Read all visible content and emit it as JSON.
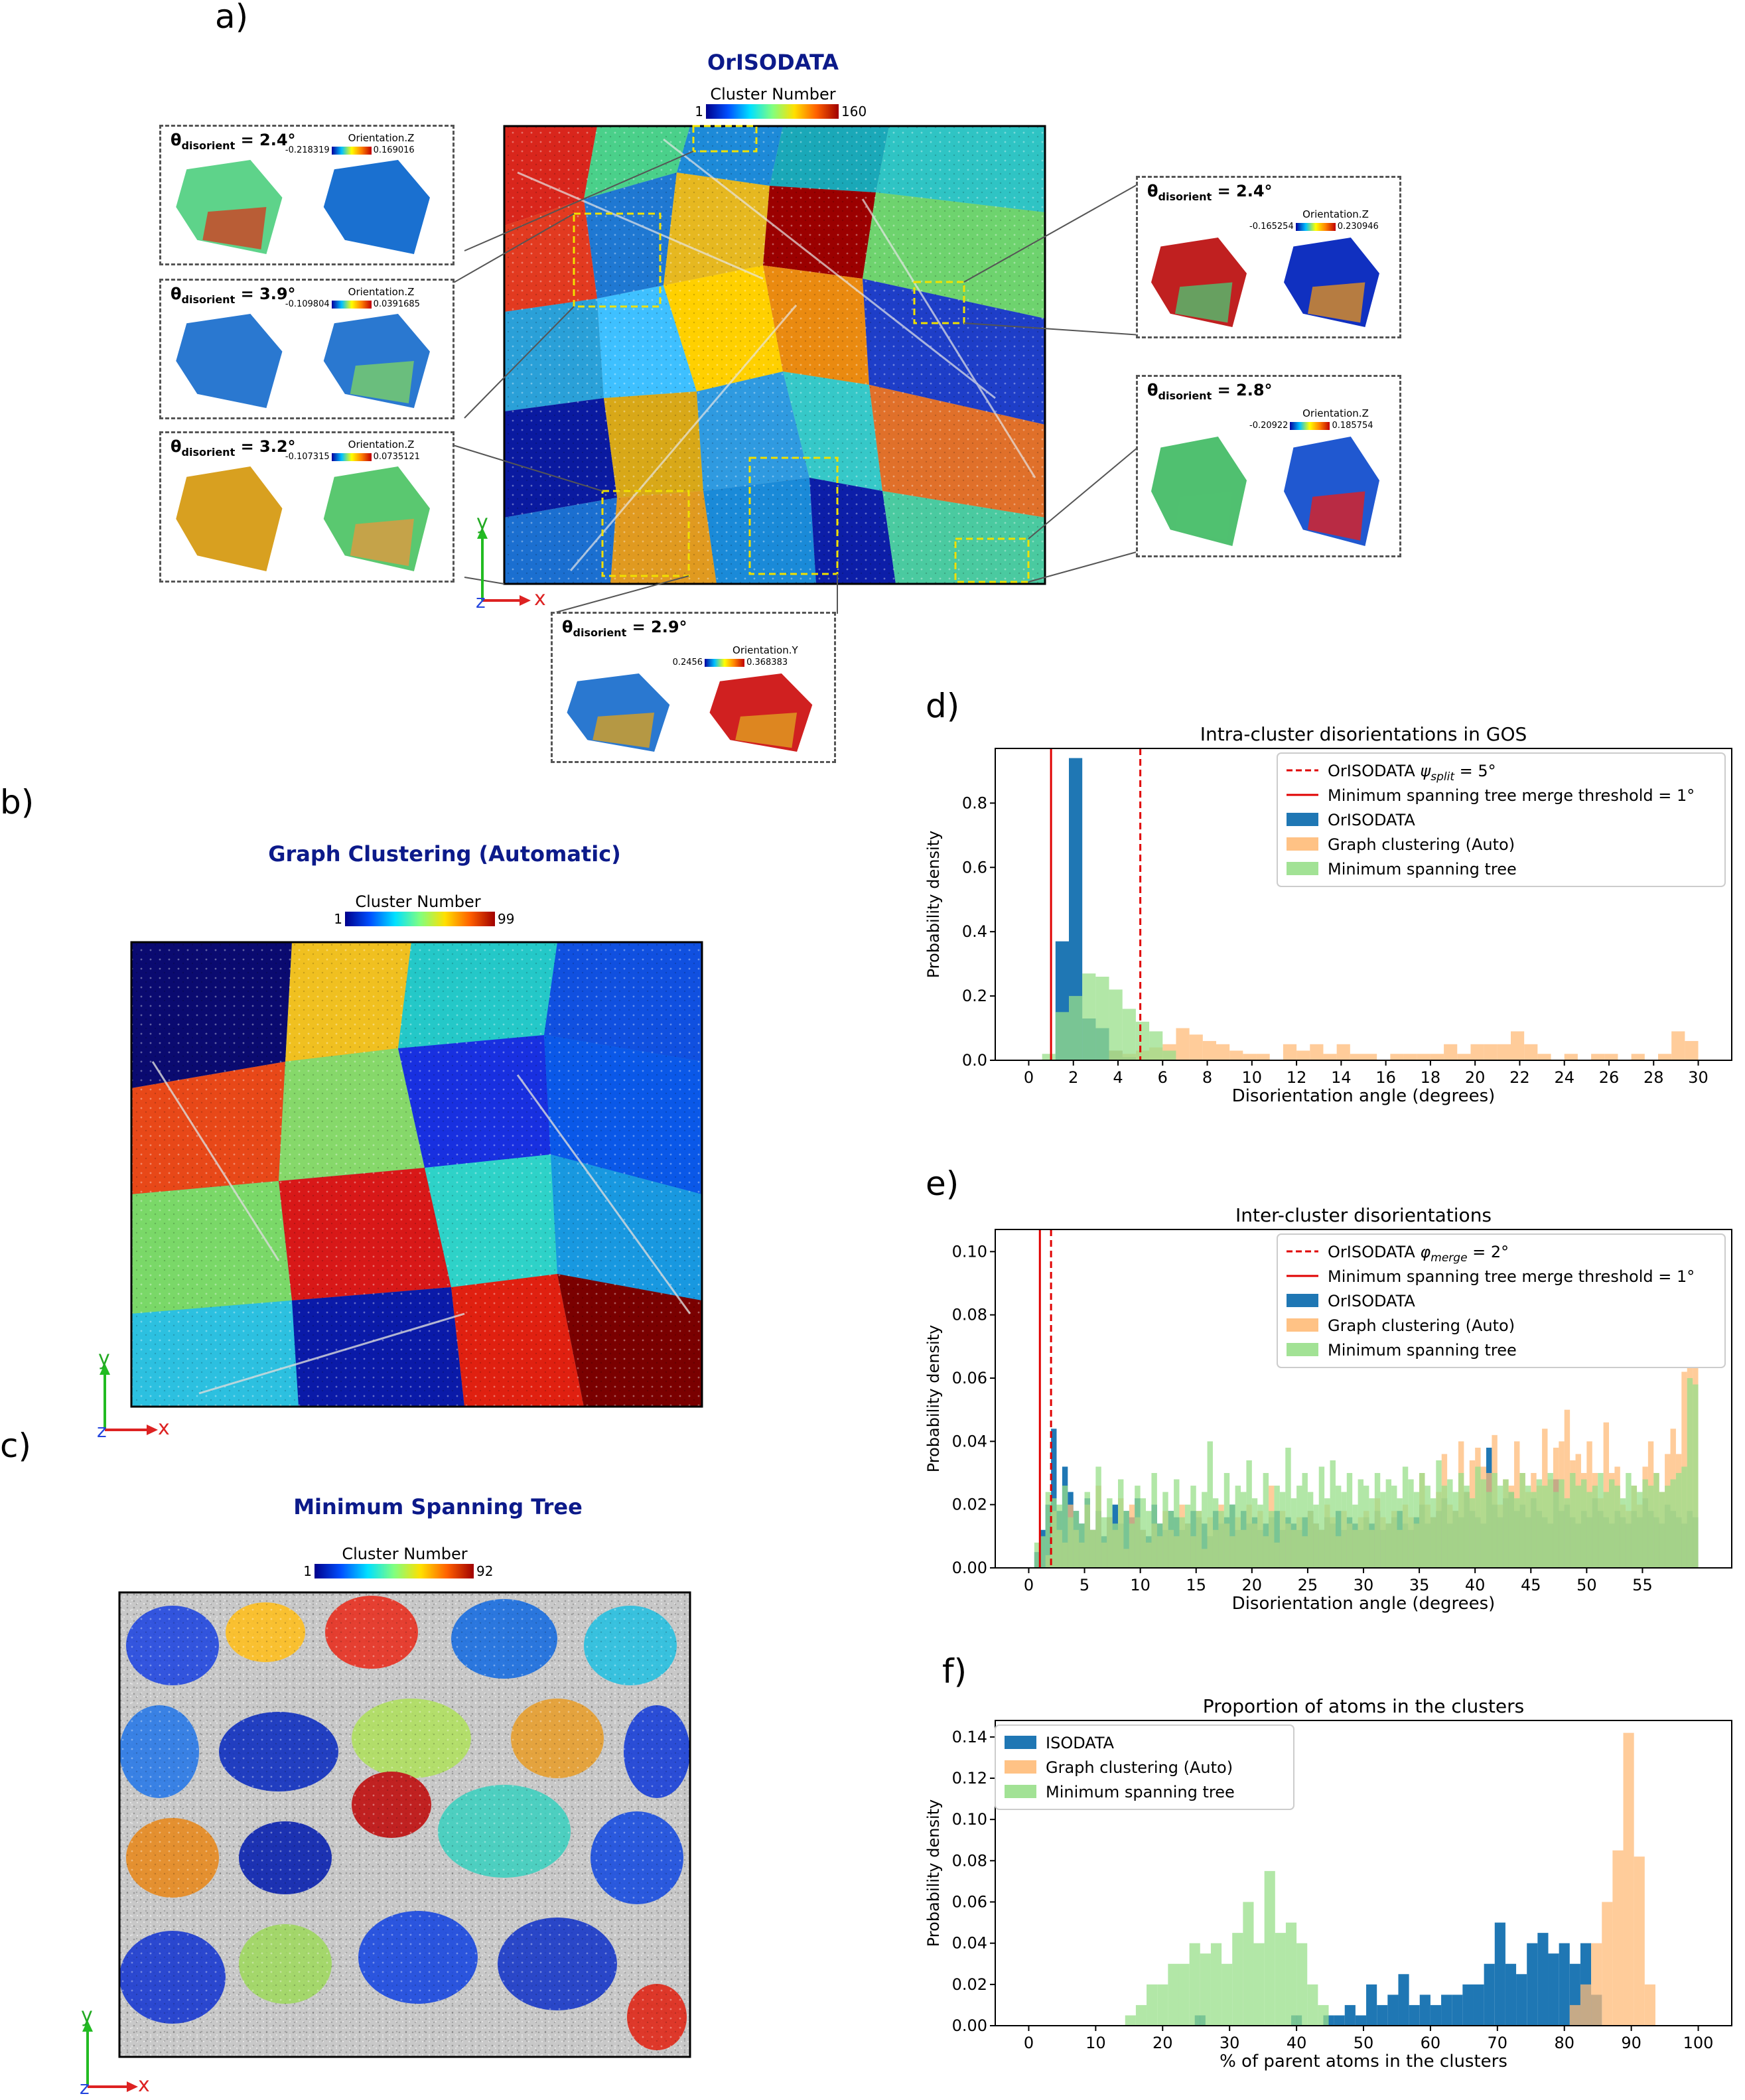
{
  "colors": {
    "title_blue": "#0c1a8a",
    "orisodata": "#1f77b4",
    "graph_auto": "#ffbb78",
    "mst": "#98df8a",
    "ref_line": "#e00000"
  },
  "panels": {
    "a": {
      "letter": "a)",
      "title": "OrISODATA",
      "colorbar": {
        "label": "Cluster Number",
        "min": "1",
        "max": "160"
      },
      "insets": [
        {
          "theta": "θdisorient = 2.4°",
          "theta_main": "θ",
          "theta_sub": "disorient",
          "theta_val": " = 2.4°",
          "cb_label": "Orientation.Z",
          "cb_min": "-0.218319",
          "cb_max": "0.169016"
        },
        {
          "theta": "θdisorient = 3.9°",
          "theta_main": "θ",
          "theta_sub": "disorient",
          "theta_val": " = 3.9°",
          "cb_label": "Orientation.Z",
          "cb_min": "-0.109804",
          "cb_max": "0.0391685"
        },
        {
          "theta": "θdisorient = 3.2°",
          "theta_main": "θ",
          "theta_sub": "disorient",
          "theta_val": " = 3.2°",
          "cb_label": "Orientation.Z",
          "cb_min": "-0.107315",
          "cb_max": "0.0735121"
        },
        {
          "theta": "θdisorient = 2.4°",
          "theta_main": "θ",
          "theta_sub": "disorient",
          "theta_val": " = 2.4°",
          "cb_label": "Orientation.Z",
          "cb_min": "-0.165254",
          "cb_max": "0.230946"
        },
        {
          "theta": "θdisorient = 2.8°",
          "theta_main": "θ",
          "theta_sub": "disorient",
          "theta_val": " = 2.8°",
          "cb_label": "Orientation.Z",
          "cb_min": "-0.20922",
          "cb_max": "0.185754"
        },
        {
          "theta": "θdisorient = 2.9°",
          "theta_main": "θ",
          "theta_sub": "disorient",
          "theta_val": " = 2.9°",
          "cb_label": "Orientation.Y",
          "cb_min": "0.2456",
          "cb_max": "0.368383"
        }
      ],
      "axes": {
        "y": "y",
        "x": "x",
        "z": "z"
      }
    },
    "b": {
      "letter": "b)",
      "title": "Graph Clustering (Automatic)",
      "colorbar": {
        "label": "Cluster Number",
        "min": "1",
        "max": "99"
      },
      "axes": {
        "y": "y",
        "x": "x",
        "z": "z"
      }
    },
    "c": {
      "letter": "c)",
      "title": "Minimum Spanning Tree",
      "colorbar": {
        "label": "Cluster Number",
        "min": "1",
        "max": "92"
      },
      "axes": {
        "y": "y",
        "x": "x",
        "z": "z"
      }
    },
    "d": {
      "letter": "d)"
    },
    "e": {
      "letter": "e)"
    },
    "f": {
      "letter": "f)"
    }
  },
  "chart_data": [
    {
      "id": "d",
      "type": "bar",
      "title": "Intra-cluster disorientations in GOS",
      "xlabel": "Disorientation angle (degrees)",
      "ylabel": "Probability density",
      "xlim": [
        -1.5,
        31.5
      ],
      "ylim": [
        0,
        0.97
      ],
      "xticks": [
        0,
        2,
        4,
        6,
        8,
        10,
        12,
        14,
        16,
        18,
        20,
        22,
        24,
        26,
        28,
        30
      ],
      "yticks": [
        0.0,
        0.2,
        0.4,
        0.6,
        0.8
      ],
      "ytick_labels": [
        "0.0",
        "0.2",
        "0.4",
        "0.6",
        "0.8"
      ],
      "bin_width": 0.6,
      "vlines": [
        {
          "x": 5,
          "style": "dashed",
          "label": "OrISODATA ψsplit = 5°",
          "label_main": "OrISODATA ",
          "label_ital": "ψ",
          "label_sub": "split",
          "label_end": " = 5°"
        },
        {
          "x": 1,
          "style": "solid",
          "label": "Minimum spanning tree merge threshold = 1°"
        }
      ],
      "series": [
        {
          "name": "OrISODATA",
          "x": [
            1.2,
            1.8,
            2.4,
            3.0,
            3.6,
            4.2
          ],
          "values": [
            0.37,
            0.94,
            0.13,
            0.1,
            0.03,
            0.01
          ]
        },
        {
          "name": "Graph clustering (Auto)",
          "x": [
            3.6,
            4.2,
            4.8,
            5.4,
            6.0,
            6.6,
            7.2,
            7.8,
            8.4,
            9.0,
            9.6,
            10.2,
            11.4,
            12.0,
            12.6,
            13.2,
            13.8,
            14.4,
            15.0,
            16.2,
            16.8,
            17.4,
            18.0,
            18.6,
            19.2,
            19.8,
            20.4,
            21.0,
            21.6,
            22.2,
            22.8,
            24.0,
            25.2,
            25.8,
            27.0,
            28.2,
            28.8,
            29.4
          ],
          "values": [
            0.03,
            0.02,
            0.03,
            0.04,
            0.05,
            0.1,
            0.08,
            0.06,
            0.05,
            0.03,
            0.02,
            0.02,
            0.05,
            0.03,
            0.05,
            0.02,
            0.05,
            0.02,
            0.02,
            0.02,
            0.02,
            0.02,
            0.02,
            0.05,
            0.02,
            0.05,
            0.05,
            0.05,
            0.09,
            0.05,
            0.02,
            0.02,
            0.02,
            0.02,
            0.02,
            0.02,
            0.09,
            0.06
          ]
        },
        {
          "name": "Minimum spanning tree",
          "x": [
            0.6,
            1.2,
            1.8,
            2.4,
            3.0,
            3.6,
            4.2,
            4.8,
            5.4,
            6.0
          ],
          "values": [
            0.02,
            0.15,
            0.2,
            0.27,
            0.26,
            0.22,
            0.16,
            0.12,
            0.09,
            0.03
          ]
        }
      ]
    },
    {
      "id": "e",
      "type": "bar",
      "title": "Inter-cluster disorientations",
      "xlabel": "Disorientation angle (degrees)",
      "ylabel": "Probability density",
      "xlim": [
        -3,
        63
      ],
      "ylim": [
        0,
        0.107
      ],
      "xticks": [
        0,
        5,
        10,
        15,
        20,
        25,
        30,
        35,
        40,
        45,
        50,
        55
      ],
      "yticks": [
        0.0,
        0.02,
        0.04,
        0.06,
        0.08,
        0.1
      ],
      "ytick_labels": [
        "0.00",
        "0.02",
        "0.04",
        "0.06",
        "0.08",
        "0.10"
      ],
      "bin_width": 0.5,
      "vlines": [
        {
          "x": 2,
          "style": "dashed",
          "label": "OrISODATA φmerge = 2°",
          "label_main": "OrISODATA ",
          "label_ital": "φ",
          "label_sub": "merge",
          "label_end": " = 2°"
        },
        {
          "x": 1,
          "style": "solid",
          "label": "Minimum spanning tree merge threshold = 1°"
        }
      ],
      "series": [
        {
          "name": "OrISODATA",
          "x0": 0.0,
          "values": [
            0.0,
            0.005,
            0.012,
            0.02,
            0.044,
            0.018,
            0.032,
            0.024,
            0.018,
            0.014,
            0.022,
            0.012,
            0.018,
            0.01,
            0.016,
            0.02,
            0.014,
            0.018,
            0.016,
            0.022,
            0.012,
            0.01,
            0.02,
            0.014,
            0.012,
            0.018,
            0.016,
            0.012,
            0.014,
            0.018,
            0.016,
            0.014,
            0.01,
            0.018,
            0.014,
            0.016,
            0.02,
            0.012,
            0.018,
            0.014,
            0.016,
            0.012,
            0.014,
            0.016,
            0.018,
            0.012,
            0.016,
            0.014,
            0.012,
            0.016,
            0.018,
            0.014,
            0.012,
            0.016,
            0.014,
            0.018,
            0.012,
            0.016,
            0.014,
            0.012,
            0.016,
            0.014,
            0.018,
            0.012,
            0.014,
            0.016,
            0.018,
            0.014,
            0.012,
            0.016,
            0.02,
            0.014,
            0.016,
            0.018,
            0.022,
            0.014,
            0.018,
            0.016,
            0.024,
            0.018,
            0.016,
            0.014,
            0.038,
            0.02,
            0.016,
            0.022,
            0.024,
            0.018,
            0.02,
            0.016,
            0.022,
            0.018,
            0.016,
            0.014,
            0.028,
            0.018,
            0.02,
            0.016,
            0.014,
            0.018,
            0.016,
            0.022,
            0.018,
            0.016,
            0.014,
            0.018,
            0.016,
            0.014,
            0.018,
            0.016,
            0.022,
            0.018,
            0.016,
            0.014,
            0.02,
            0.018,
            0.016,
            0.014,
            0.018,
            0.016
          ]
        },
        {
          "name": "Graph clustering (Auto)",
          "x0": 0.0,
          "values": [
            0.0,
            0.0,
            0.0,
            0.004,
            0.018,
            0.012,
            0.008,
            0.02,
            0.012,
            0.008,
            0.02,
            0.012,
            0.026,
            0.008,
            0.016,
            0.012,
            0.022,
            0.006,
            0.02,
            0.016,
            0.012,
            0.008,
            0.014,
            0.01,
            0.018,
            0.012,
            0.01,
            0.02,
            0.014,
            0.01,
            0.018,
            0.006,
            0.016,
            0.012,
            0.02,
            0.014,
            0.01,
            0.016,
            0.012,
            0.02,
            0.014,
            0.018,
            0.01,
            0.026,
            0.008,
            0.018,
            0.014,
            0.012,
            0.016,
            0.01,
            0.018,
            0.014,
            0.012,
            0.02,
            0.016,
            0.01,
            0.018,
            0.014,
            0.012,
            0.016,
            0.018,
            0.012,
            0.022,
            0.016,
            0.014,
            0.018,
            0.012,
            0.02,
            0.016,
            0.014,
            0.03,
            0.02,
            0.016,
            0.024,
            0.036,
            0.02,
            0.018,
            0.04,
            0.024,
            0.034,
            0.038,
            0.032,
            0.03,
            0.042,
            0.02,
            0.028,
            0.026,
            0.04,
            0.03,
            0.024,
            0.03,
            0.026,
            0.044,
            0.028,
            0.038,
            0.04,
            0.05,
            0.034,
            0.036,
            0.03,
            0.04,
            0.03,
            0.022,
            0.046,
            0.03,
            0.032,
            0.02,
            0.018,
            0.026,
            0.02,
            0.032,
            0.04,
            0.03,
            0.024,
            0.036,
            0.044,
            0.036,
            0.062,
            0.104,
            0.068
          ]
        },
        {
          "name": "Minimum spanning tree",
          "x0": 0.0,
          "values": [
            0.0,
            0.008,
            0.01,
            0.024,
            0.022,
            0.02,
            0.026,
            0.016,
            0.018,
            0.014,
            0.024,
            0.012,
            0.032,
            0.016,
            0.022,
            0.014,
            0.028,
            0.018,
            0.014,
            0.026,
            0.022,
            0.018,
            0.03,
            0.014,
            0.024,
            0.018,
            0.028,
            0.016,
            0.02,
            0.026,
            0.018,
            0.024,
            0.04,
            0.022,
            0.018,
            0.03,
            0.02,
            0.026,
            0.024,
            0.034,
            0.022,
            0.02,
            0.03,
            0.018,
            0.026,
            0.024,
            0.038,
            0.022,
            0.026,
            0.03,
            0.024,
            0.02,
            0.032,
            0.022,
            0.034,
            0.026,
            0.024,
            0.03,
            0.02,
            0.028,
            0.026,
            0.022,
            0.03,
            0.024,
            0.028,
            0.026,
            0.022,
            0.032,
            0.028,
            0.024,
            0.03,
            0.026,
            0.022,
            0.034,
            0.026,
            0.028,
            0.024,
            0.03,
            0.026,
            0.022,
            0.032,
            0.028,
            0.024,
            0.03,
            0.026,
            0.028,
            0.024,
            0.022,
            0.03,
            0.026,
            0.024,
            0.028,
            0.026,
            0.03,
            0.024,
            0.028,
            0.022,
            0.03,
            0.026,
            0.028,
            0.024,
            0.026,
            0.03,
            0.024,
            0.028,
            0.026,
            0.022,
            0.03,
            0.026,
            0.024,
            0.028,
            0.026,
            0.03,
            0.024,
            0.026,
            0.028,
            0.03,
            0.032,
            0.06,
            0.058
          ]
        }
      ]
    },
    {
      "id": "f",
      "type": "bar",
      "title": "Proportion of atoms in the clusters",
      "xlabel": "% of parent atoms in the clusters",
      "ylabel": "Probability density",
      "xlim": [
        -5,
        105
      ],
      "ylim": [
        0,
        0.148
      ],
      "xticks": [
        0,
        10,
        20,
        30,
        40,
        50,
        60,
        70,
        80,
        90,
        100
      ],
      "yticks": [
        0.0,
        0.02,
        0.04,
        0.06,
        0.08,
        0.1,
        0.12,
        0.14
      ],
      "ytick_labels": [
        "0.00",
        "0.02",
        "0.04",
        "0.06",
        "0.08",
        "0.10",
        "0.12",
        "0.14"
      ],
      "bin_width": 1.6,
      "series": [
        {
          "name": "ISODATA",
          "x": [
            24.8,
            39.2,
            44.0,
            45.6,
            47.2,
            48.8,
            50.4,
            52.0,
            53.6,
            55.2,
            56.8,
            58.4,
            60.0,
            61.6,
            63.2,
            64.8,
            66.4,
            68.0,
            69.6,
            71.2,
            72.8,
            74.4,
            76.0,
            77.6,
            79.2,
            80.8,
            82.4,
            84.0
          ],
          "values": [
            0.005,
            0.005,
            0.005,
            0.005,
            0.01,
            0.005,
            0.02,
            0.01,
            0.015,
            0.025,
            0.01,
            0.015,
            0.01,
            0.015,
            0.015,
            0.02,
            0.02,
            0.03,
            0.05,
            0.03,
            0.025,
            0.04,
            0.045,
            0.035,
            0.04,
            0.03,
            0.04,
            0.015
          ]
        },
        {
          "name": "Graph clustering (Auto)",
          "x": [
            80.8,
            82.4,
            84.0,
            85.6,
            87.2,
            88.8,
            90.4,
            92.0
          ],
          "values": [
            0.01,
            0.02,
            0.04,
            0.06,
            0.085,
            0.142,
            0.082,
            0.02
          ]
        },
        {
          "name": "Minimum spanning tree",
          "x": [
            14.4,
            16.0,
            17.6,
            19.2,
            20.8,
            22.4,
            24.0,
            25.6,
            27.2,
            28.8,
            30.4,
            32.0,
            33.6,
            35.2,
            36.8,
            38.4,
            40.0,
            41.6,
            43.2
          ],
          "values": [
            0.005,
            0.01,
            0.02,
            0.02,
            0.03,
            0.03,
            0.04,
            0.035,
            0.04,
            0.03,
            0.045,
            0.06,
            0.04,
            0.075,
            0.045,
            0.05,
            0.04,
            0.02,
            0.01
          ]
        }
      ]
    }
  ]
}
